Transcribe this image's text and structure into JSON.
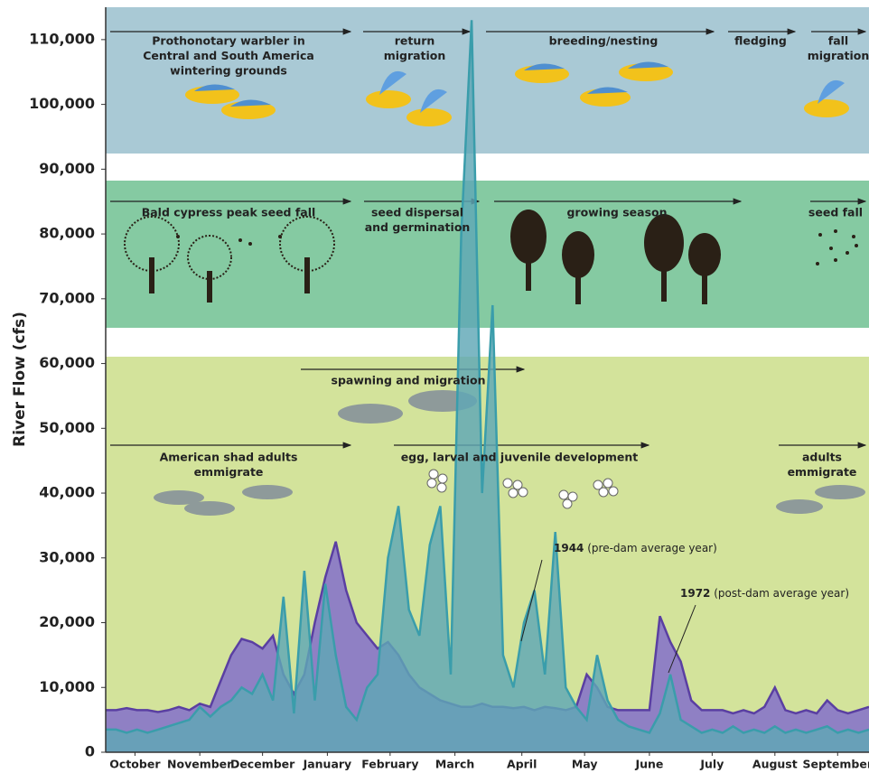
{
  "chart_data": {
    "type": "area",
    "y_label": "River Flow (cfs)",
    "xlim": [
      0,
      365
    ],
    "xticks": [
      {
        "value": 14,
        "label": "October"
      },
      {
        "value": 45,
        "label": "November"
      },
      {
        "value": 75,
        "label": "December"
      },
      {
        "value": 106,
        "label": "January"
      },
      {
        "value": 136,
        "label": "February"
      },
      {
        "value": 167,
        "label": "March"
      },
      {
        "value": 199,
        "label": "April"
      },
      {
        "value": 229,
        "label": "May"
      },
      {
        "value": 260,
        "label": "June"
      },
      {
        "value": 290,
        "label": "July"
      },
      {
        "value": 320,
        "label": "August"
      },
      {
        "value": 350,
        "label": "September"
      }
    ],
    "ylim": [
      0,
      115000
    ],
    "yticks": [
      0,
      {
        "value": 10000,
        "label": "10,000"
      },
      {
        "value": 20000,
        "label": "20,000"
      },
      {
        "value": 30000,
        "label": "30,000"
      },
      {
        "value": 40000,
        "label": "40,000"
      },
      {
        "value": 50000,
        "label": "50,000"
      },
      {
        "value": 60000,
        "label": "60,000"
      },
      {
        "value": 70000,
        "label": "70,000"
      },
      {
        "value": 80000,
        "label": "80,000"
      },
      {
        "value": 90000,
        "label": "90,000"
      },
      {
        "value": 100000,
        "label": "100,000"
      },
      {
        "value": 110000,
        "label": "110,000"
      }
    ],
    "x": [
      0,
      5,
      10,
      15,
      20,
      25,
      30,
      35,
      40,
      45,
      50,
      55,
      60,
      65,
      70,
      75,
      80,
      85,
      90,
      95,
      100,
      105,
      110,
      115,
      120,
      125,
      130,
      135,
      140,
      145,
      150,
      155,
      160,
      165,
      170,
      175,
      180,
      185,
      190,
      195,
      200,
      205,
      210,
      215,
      220,
      225,
      230,
      235,
      240,
      245,
      250,
      255,
      260,
      265,
      270,
      275,
      280,
      285,
      290,
      295,
      300,
      305,
      310,
      315,
      320,
      325,
      330,
      335,
      340,
      345,
      350,
      355,
      360,
      365
    ],
    "series": [
      {
        "name": "1972",
        "note": "(post-dam average year)",
        "color": "#8f80c4",
        "stroke": "#5a3fa2",
        "values": [
          6500,
          6500,
          6800,
          6500,
          6500,
          6200,
          6500,
          7000,
          6500,
          7500,
          7000,
          11000,
          15000,
          17500,
          17000,
          16000,
          18000,
          12000,
          9000,
          12000,
          20000,
          27000,
          32500,
          25000,
          20000,
          18000,
          16000,
          17000,
          15000,
          12000,
          10000,
          9000,
          8000,
          7500,
          7000,
          7000,
          7500,
          7000,
          7000,
          6800,
          7000,
          6500,
          7000,
          6800,
          6500,
          7000,
          12000,
          10000,
          7000,
          6500,
          6500,
          6500,
          6500,
          21000,
          17000,
          14000,
          8000,
          6500,
          6500,
          6500,
          6000,
          6500,
          6000,
          7000,
          10000,
          6500,
          6000,
          6500,
          6000,
          8000,
          6500,
          6000,
          6500,
          7000
        ]
      },
      {
        "name": "1944",
        "note": "(pre-dam average year)",
        "color": "#5fa7b6",
        "stroke": "#3a9dab",
        "values": [
          3500,
          3500,
          3000,
          3500,
          3000,
          3500,
          4000,
          4500,
          5000,
          7000,
          5500,
          7000,
          8000,
          10000,
          9000,
          12000,
          8000,
          24000,
          6000,
          28000,
          8000,
          26000,
          15000,
          7000,
          5000,
          10000,
          12000,
          30000,
          38000,
          22000,
          18000,
          32000,
          38000,
          12000,
          80000,
          113000,
          40000,
          69000,
          15000,
          10000,
          20000,
          25000,
          12000,
          34000,
          10000,
          7000,
          5000,
          15000,
          8000,
          5000,
          4000,
          3500,
          3000,
          6000,
          12000,
          5000,
          4000,
          3000,
          3500,
          3000,
          4000,
          3000,
          3500,
          3000,
          4000,
          3000,
          3500,
          3000,
          3500,
          4000,
          3000,
          3500,
          3000,
          3500
        ]
      }
    ],
    "annotations": [
      [
        "Prothonotary warbler in",
        "Central and South America",
        "wintering grounds"
      ],
      [
        "return",
        "migration"
      ],
      [
        "breeding/nesting"
      ],
      [
        "fledging"
      ],
      [
        "fall",
        "migration"
      ],
      [
        "Bald cypress peak seed fall"
      ],
      [
        "seed dispersal",
        "and germination"
      ],
      [
        "growing season"
      ],
      [
        "seed fall"
      ],
      [
        "spawning and migration"
      ],
      [
        "American shad adults",
        "emmigrate"
      ],
      [
        "egg, larval and juvenile development"
      ],
      [
        "adults",
        "emmigrate"
      ]
    ]
  }
}
